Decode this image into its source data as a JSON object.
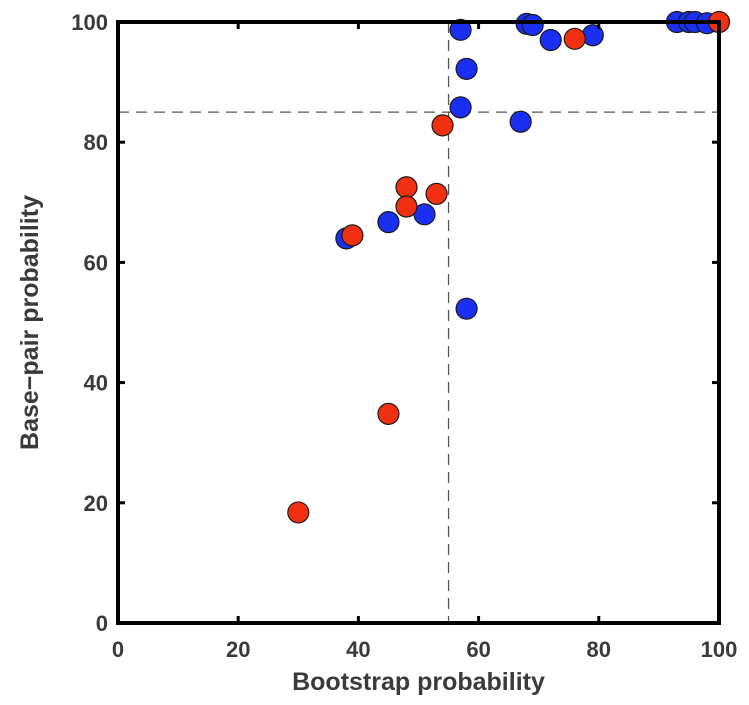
{
  "chart_data": {
    "type": "scatter",
    "title": "",
    "xlabel": "Bootstrap probability",
    "ylabel": "Base−pair probability",
    "xlim": [
      0,
      100
    ],
    "ylim": [
      0,
      100
    ],
    "xticks": [
      "0",
      "20",
      "40",
      "60",
      "80",
      "100"
    ],
    "yticks": [
      "0",
      "20",
      "40",
      "60",
      "80",
      "100"
    ],
    "grid": false,
    "legend": "none",
    "reference_lines": {
      "vertical_x": 55,
      "horizontal_y": 85
    },
    "series": [
      {
        "color": "#1a2ff2",
        "points": [
          {
            "x": 38,
            "y": 64
          },
          {
            "x": 45,
            "y": 66.7
          },
          {
            "x": 51,
            "y": 68
          },
          {
            "x": 57,
            "y": 98.7
          },
          {
            "x": 58,
            "y": 92.2
          },
          {
            "x": 57,
            "y": 85.8
          },
          {
            "x": 58,
            "y": 52.3
          },
          {
            "x": 67,
            "y": 83.4
          },
          {
            "x": 68,
            "y": 99.7
          },
          {
            "x": 69,
            "y": 99.5
          },
          {
            "x": 72,
            "y": 97
          },
          {
            "x": 79,
            "y": 97.8
          },
          {
            "x": 93,
            "y": 100
          },
          {
            "x": 95,
            "y": 100
          },
          {
            "x": 96,
            "y": 100
          },
          {
            "x": 98,
            "y": 99.8
          }
        ]
      },
      {
        "color": "#f03010",
        "points": [
          {
            "x": 30,
            "y": 18.4
          },
          {
            "x": 39,
            "y": 64.5
          },
          {
            "x": 45,
            "y": 34.8
          },
          {
            "x": 48,
            "y": 72.5
          },
          {
            "x": 48,
            "y": 69.3
          },
          {
            "x": 53,
            "y": 71.4
          },
          {
            "x": 54,
            "y": 82.8
          },
          {
            "x": 76,
            "y": 97.2
          },
          {
            "x": 100,
            "y": 100
          }
        ]
      }
    ]
  }
}
